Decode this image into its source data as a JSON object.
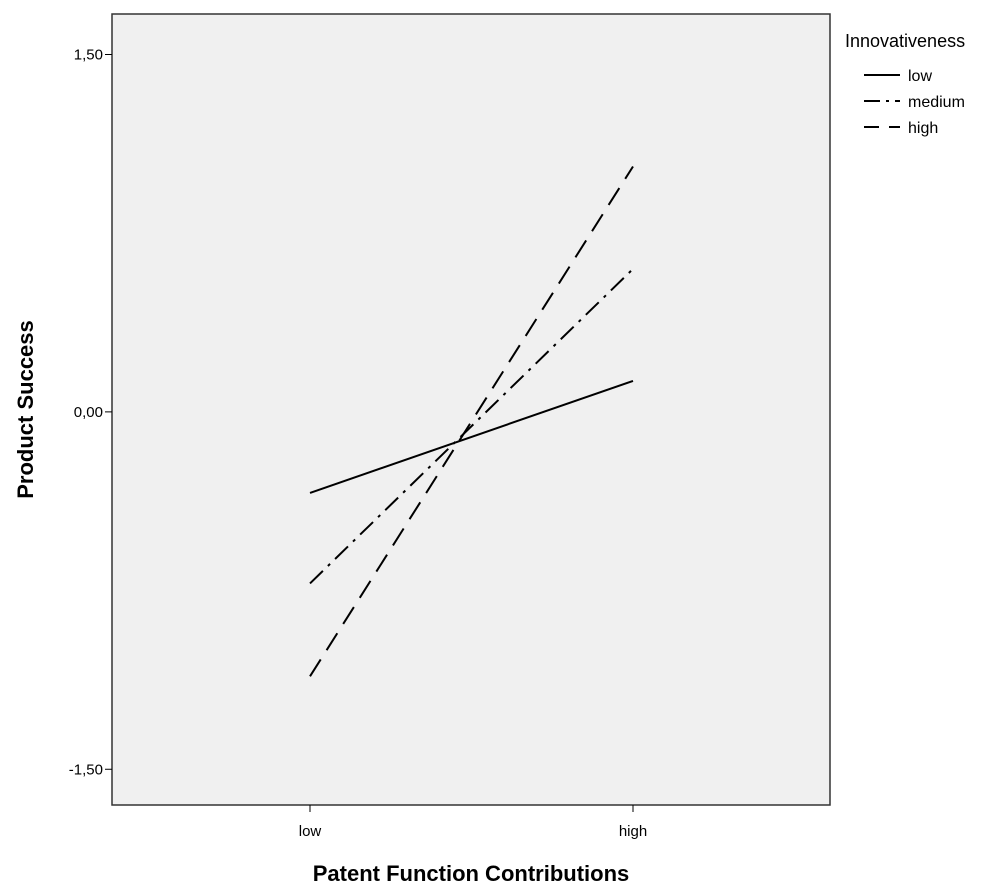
{
  "chart_data": {
    "type": "line",
    "title": "",
    "xlabel": "Patent Function Contributions",
    "ylabel": "Product Success",
    "categories": [
      "low",
      "high"
    ],
    "ylim": [
      -1.65,
      1.67
    ],
    "yticks": [
      -1.5,
      0.0,
      1.5
    ],
    "ytick_labels": [
      "-1,50",
      "0,00",
      "1,50"
    ],
    "grid": false,
    "legend": {
      "title": "Innovativeness",
      "position": "top-right"
    },
    "series": [
      {
        "name": "low",
        "values": [
          -0.34,
          0.13
        ],
        "line_style": "solid"
      },
      {
        "name": "medium",
        "values": [
          -0.72,
          0.6
        ],
        "line_style": "dash-dot"
      },
      {
        "name": "high",
        "values": [
          -1.11,
          1.03
        ],
        "line_style": "dashed"
      }
    ]
  },
  "colors": {
    "plot_background": "#f0f0f0",
    "line_color": "#000000"
  }
}
